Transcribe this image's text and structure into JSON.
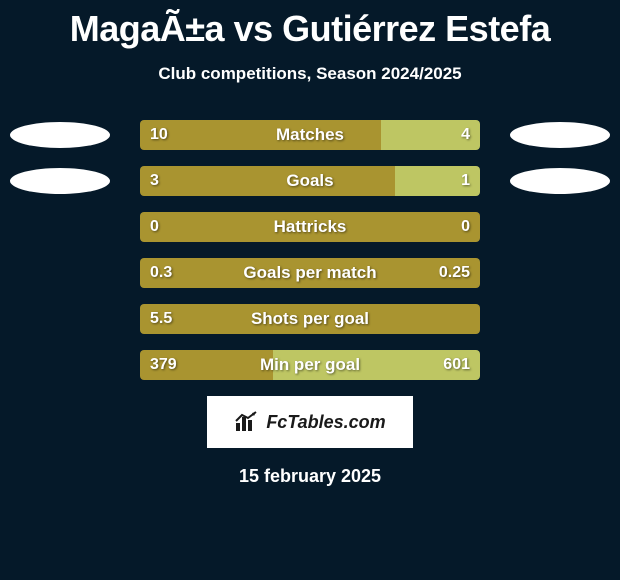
{
  "title": "MagaÃ±a vs Gutiérrez Estefa",
  "subtitle": "Club competitions, Season 2024/2025",
  "date": "15 february 2025",
  "logo_text": "FcTables.com",
  "colors": {
    "background": "#051929",
    "ellipse": "#ffffff",
    "bar_left": "#a99430",
    "bar_right": "#bec663",
    "text": "#ffffff",
    "logo_bg": "#ffffff",
    "logo_text": "#1a1a1a"
  },
  "stats": [
    {
      "label": "Matches",
      "left_value": "10",
      "right_value": "4",
      "left_pct": 71,
      "right_pct": 29,
      "show_ellipses": true
    },
    {
      "label": "Goals",
      "left_value": "3",
      "right_value": "1",
      "left_pct": 75,
      "right_pct": 25,
      "show_ellipses": true
    },
    {
      "label": "Hattricks",
      "left_value": "0",
      "right_value": "0",
      "left_pct": 100,
      "right_pct": 0,
      "show_ellipses": false
    },
    {
      "label": "Goals per match",
      "left_value": "0.3",
      "right_value": "0.25",
      "left_pct": 100,
      "right_pct": 0,
      "show_ellipses": false
    },
    {
      "label": "Shots per goal",
      "left_value": "5.5",
      "right_value": "",
      "left_pct": 100,
      "right_pct": 0,
      "show_ellipses": false
    },
    {
      "label": "Min per goal",
      "left_value": "379",
      "right_value": "601",
      "left_pct": 39,
      "right_pct": 61,
      "show_ellipses": false
    }
  ]
}
